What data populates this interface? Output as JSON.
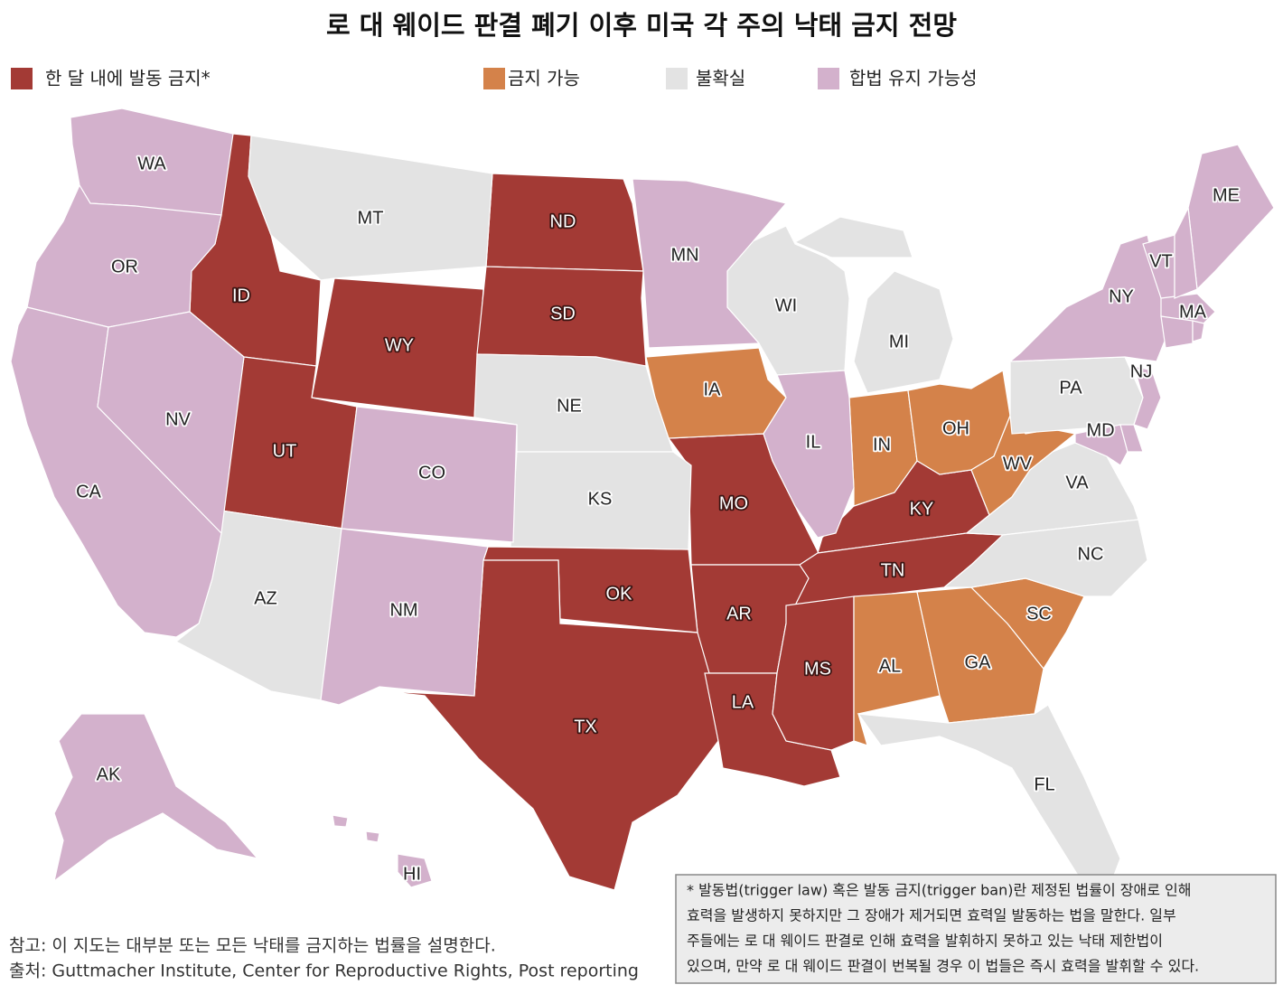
{
  "title": "로 대 웨이드 판결 폐기 이후 미국 각 주의 낙태 금지 전망",
  "legend": [
    {
      "label": "한 달 내에 발동 금지*",
      "color": "#a33a35",
      "states": [
        "ID",
        "WY",
        "UT",
        "ND",
        "SD",
        "MO",
        "KY",
        "TN",
        "AR",
        "OK",
        "TX",
        "LA",
        "MS"
      ]
    },
    {
      "label": "금지 가능",
      "color": "#d4824a",
      "states": [
        "IA",
        "IN",
        "OH",
        "WV",
        "AL",
        "GA",
        "SC"
      ]
    },
    {
      "label": "불확실",
      "color": "#e3e3e3",
      "states": [
        "MT",
        "NE",
        "KS",
        "AZ",
        "WI",
        "MI",
        "PA",
        "VA",
        "NC",
        "FL"
      ]
    },
    {
      "label": "합법 유지 가능성",
      "color": "#d3b1cc",
      "states": [
        "WA",
        "OR",
        "CA",
        "NV",
        "CO",
        "NM",
        "MN",
        "IL",
        "NY",
        "VT",
        "ME",
        "MA",
        "NJ",
        "MD",
        "AK",
        "HI"
      ]
    }
  ],
  "note": "참고: 이 지도는 대부분 또는 모든 낙태를 금지하는 법률을 설명한다.",
  "source": "출처: Guttmacher Institute, Center for Reproductive Rights, Post reporting",
  "footnote": [
    "* 발동법(trigger law) 혹은 발동 금지(trigger ban)란 제정된 법률이 장애로 인해",
    "효력을 발생하지 못하지만 그 장애가 제거되면 효력일 발동하는 법을 말한다. 일부",
    "주들에는 로 대 웨이드 판결로 인해 효력을 발휘하지 못하고 있는 낙태 제한법이",
    "있으며, 만약 로 대 웨이드 판결이 번복될 경우 이 법들은 즉시 효력을 발휘할 수 있다."
  ]
}
